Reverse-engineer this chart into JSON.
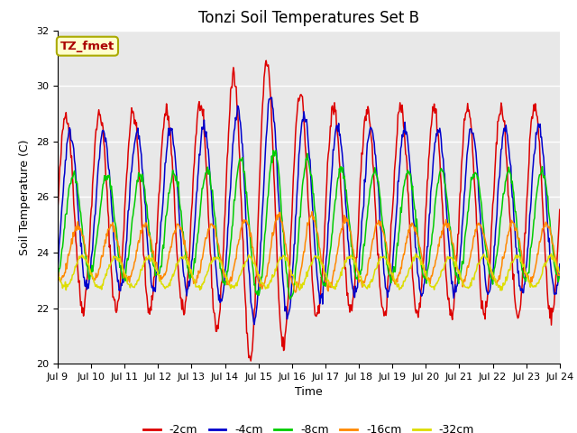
{
  "title": "Tonzi Soil Temperatures Set B",
  "xlabel": "Time",
  "ylabel": "Soil Temperature (C)",
  "ylim": [
    20,
    32
  ],
  "x_tick_labels": [
    "Jul 9",
    "Jul 10",
    "Jul 11",
    "Jul 12",
    "Jul 13",
    "Jul 14",
    "Jul 15",
    "Jul 16",
    "Jul 17",
    "Jul 18",
    "Jul 19",
    "Jul 20",
    "Jul 21",
    "Jul 22",
    "Jul 23",
    "Jul 24"
  ],
  "annotation_text": "TZ_fmet",
  "annotation_color": "#aa0000",
  "annotation_bg": "#ffffcc",
  "annotation_border": "#aaaa00",
  "bg_color": "#e8e8e8",
  "colors": {
    "-2cm": "#dd0000",
    "-4cm": "#0000cc",
    "-8cm": "#00cc00",
    "-16cm": "#ff8800",
    "-32cm": "#dddd00"
  },
  "grid_color": "#ffffff",
  "title_fontsize": 12,
  "label_fontsize": 9,
  "tick_fontsize": 8
}
